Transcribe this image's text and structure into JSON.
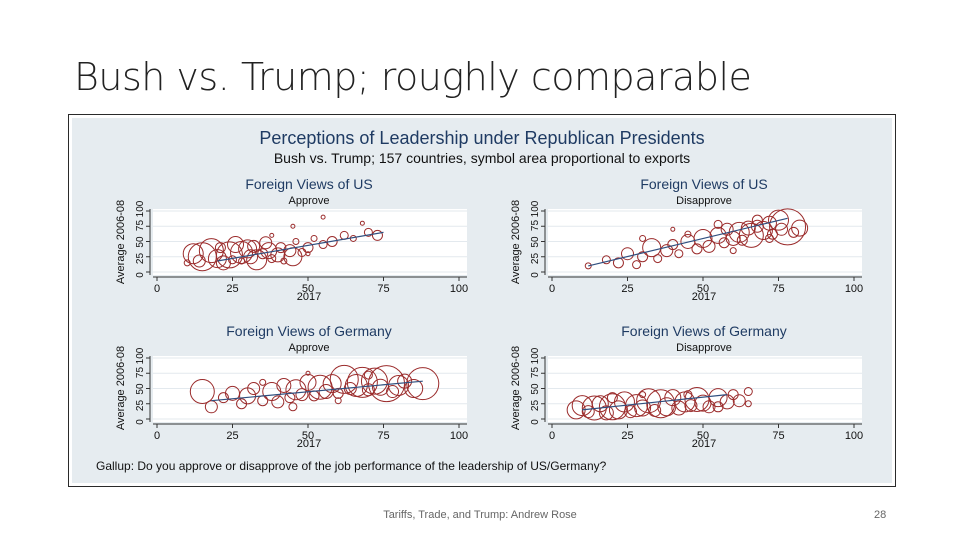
{
  "slide": {
    "title": "Bush vs. Trump; roughly comparable",
    "footer": "Tariffs, Trade, and Trump: Andrew Rose",
    "page_number": "28"
  },
  "colors": {
    "bubble": "#9b2c2c",
    "fit_line": "#2f4f7f",
    "panel_bg": "#e6ecf0",
    "title_text": "#1f3b63"
  },
  "chart_data": {
    "type": "scatter",
    "title": "Perceptions of Leadership under Republican Presidents",
    "subtitle": "Bush vs. Trump; 157 countries, symbol area proportional to exports",
    "note": "Gallup: Do you approve or disapprove of the job performance of the leadership of US/Germany?",
    "panels": [
      {
        "title": "Foreign Views of US",
        "subtitle": "Approve",
        "xlabel": "2017",
        "ylabel": "Average 2006-08",
        "xlim": [
          0,
          100
        ],
        "ylim": [
          0,
          100
        ],
        "xticks": [
          "0",
          "25",
          "50",
          "75",
          "100"
        ],
        "yticks": [
          "0",
          "25",
          "50",
          "75",
          "100"
        ],
        "fit": [
          [
            20,
            18
          ],
          [
            75,
            65
          ]
        ],
        "points": [
          [
            10,
            15,
            3
          ],
          [
            12,
            30,
            10
          ],
          [
            14,
            18,
            6
          ],
          [
            15,
            25,
            14
          ],
          [
            18,
            35,
            12
          ],
          [
            20,
            22,
            9
          ],
          [
            21,
            40,
            5
          ],
          [
            22,
            15,
            7
          ],
          [
            24,
            28,
            13
          ],
          [
            25,
            20,
            4
          ],
          [
            26,
            45,
            8
          ],
          [
            28,
            32,
            11
          ],
          [
            28,
            18,
            3
          ],
          [
            30,
            38,
            9
          ],
          [
            31,
            25,
            7
          ],
          [
            32,
            42,
            6
          ],
          [
            33,
            20,
            10
          ],
          [
            35,
            30,
            5
          ],
          [
            36,
            48,
            6
          ],
          [
            37,
            35,
            8
          ],
          [
            38,
            22,
            4
          ],
          [
            40,
            28,
            7
          ],
          [
            41,
            40,
            5
          ],
          [
            42,
            18,
            3
          ],
          [
            44,
            35,
            6
          ],
          [
            45,
            25,
            9
          ],
          [
            46,
            50,
            3
          ],
          [
            48,
            32,
            4
          ],
          [
            50,
            40,
            5
          ],
          [
            52,
            55,
            3
          ],
          [
            55,
            45,
            4
          ],
          [
            58,
            50,
            5
          ],
          [
            62,
            60,
            4
          ],
          [
            65,
            55,
            3
          ],
          [
            70,
            65,
            4
          ],
          [
            73,
            60,
            5
          ],
          [
            45,
            75,
            2
          ],
          [
            55,
            90,
            2
          ],
          [
            68,
            80,
            2
          ],
          [
            38,
            60,
            2
          ],
          [
            50,
            30,
            2
          ]
        ]
      },
      {
        "title": "Foreign Views of US",
        "subtitle": "Disapprove",
        "xlabel": "2017",
        "ylabel": "Average 2006-08",
        "xlim": [
          0,
          100
        ],
        "ylim": [
          0,
          100
        ],
        "xticks": [
          "0",
          "25",
          "50",
          "75",
          "100"
        ],
        "yticks": [
          "0",
          "25",
          "50",
          "75",
          "100"
        ],
        "fit": [
          [
            12,
            10
          ],
          [
            78,
            88
          ]
        ],
        "points": [
          [
            12,
            10,
            3
          ],
          [
            18,
            20,
            4
          ],
          [
            22,
            15,
            5
          ],
          [
            25,
            30,
            6
          ],
          [
            28,
            12,
            4
          ],
          [
            30,
            25,
            5
          ],
          [
            33,
            40,
            9
          ],
          [
            35,
            22,
            4
          ],
          [
            38,
            35,
            6
          ],
          [
            40,
            45,
            5
          ],
          [
            42,
            30,
            4
          ],
          [
            45,
            50,
            7
          ],
          [
            48,
            38,
            5
          ],
          [
            50,
            55,
            9
          ],
          [
            52,
            42,
            6
          ],
          [
            55,
            60,
            8
          ],
          [
            57,
            48,
            5
          ],
          [
            58,
            70,
            6
          ],
          [
            60,
            55,
            7
          ],
          [
            62,
            65,
            10
          ],
          [
            63,
            52,
            5
          ],
          [
            65,
            72,
            7
          ],
          [
            66,
            60,
            12
          ],
          [
            68,
            75,
            6
          ],
          [
            70,
            68,
            9
          ],
          [
            72,
            80,
            7
          ],
          [
            73,
            62,
            5
          ],
          [
            75,
            85,
            10
          ],
          [
            76,
            70,
            6
          ],
          [
            78,
            74,
            18
          ],
          [
            80,
            65,
            5
          ],
          [
            82,
            72,
            8
          ],
          [
            68,
            85,
            5
          ],
          [
            55,
            78,
            4
          ],
          [
            45,
            62,
            3
          ],
          [
            30,
            55,
            3
          ],
          [
            40,
            70,
            2
          ],
          [
            60,
            35,
            3
          ],
          [
            72,
            55,
            4
          ]
        ]
      },
      {
        "title": "Foreign Views of Germany",
        "subtitle": "Approve",
        "xlabel": "2017",
        "ylabel": "Average 2006-08",
        "xlim": [
          0,
          100
        ],
        "ylim": [
          0,
          100
        ],
        "xticks": [
          "0",
          "25",
          "50",
          "75",
          "100"
        ],
        "yticks": [
          "0",
          "25",
          "50",
          "75",
          "100"
        ],
        "fit": [
          [
            18,
            30
          ],
          [
            88,
            62
          ]
        ],
        "points": [
          [
            15,
            45,
            12
          ],
          [
            18,
            20,
            6
          ],
          [
            22,
            35,
            5
          ],
          [
            25,
            42,
            7
          ],
          [
            28,
            25,
            5
          ],
          [
            30,
            38,
            8
          ],
          [
            32,
            50,
            6
          ],
          [
            35,
            30,
            5
          ],
          [
            38,
            45,
            9
          ],
          [
            40,
            28,
            6
          ],
          [
            42,
            55,
            7
          ],
          [
            44,
            35,
            5
          ],
          [
            46,
            48,
            10
          ],
          [
            48,
            40,
            6
          ],
          [
            50,
            60,
            8
          ],
          [
            52,
            38,
            5
          ],
          [
            54,
            52,
            12
          ],
          [
            56,
            45,
            7
          ],
          [
            58,
            58,
            9
          ],
          [
            60,
            42,
            5
          ],
          [
            62,
            65,
            14
          ],
          [
            64,
            50,
            6
          ],
          [
            66,
            55,
            11
          ],
          [
            68,
            60,
            15
          ],
          [
            70,
            48,
            6
          ],
          [
            72,
            62,
            13
          ],
          [
            74,
            52,
            8
          ],
          [
            76,
            58,
            18
          ],
          [
            78,
            45,
            6
          ],
          [
            80,
            55,
            10
          ],
          [
            82,
            62,
            7
          ],
          [
            85,
            50,
            9
          ],
          [
            88,
            58,
            16
          ],
          [
            45,
            20,
            4
          ],
          [
            60,
            30,
            3
          ],
          [
            70,
            72,
            4
          ],
          [
            35,
            60,
            3
          ],
          [
            50,
            75,
            2
          ]
        ]
      },
      {
        "title": "Foreign Views of Germany",
        "subtitle": "Disapprove",
        "xlabel": "2017",
        "ylabel": "Average 2006-08",
        "xlim": [
          0,
          100
        ],
        "ylim": [
          0,
          100
        ],
        "xticks": [
          "0",
          "25",
          "50",
          "75",
          "100"
        ],
        "yticks": [
          "0",
          "25",
          "50",
          "75",
          "100"
        ],
        "fit": [
          [
            10,
            15
          ],
          [
            58,
            40
          ]
        ],
        "points": [
          [
            8,
            15,
            9
          ],
          [
            10,
            22,
            10
          ],
          [
            12,
            12,
            6
          ],
          [
            14,
            18,
            12
          ],
          [
            16,
            25,
            8
          ],
          [
            18,
            10,
            7
          ],
          [
            20,
            20,
            13
          ],
          [
            22,
            15,
            9
          ],
          [
            24,
            28,
            10
          ],
          [
            26,
            12,
            6
          ],
          [
            28,
            22,
            11
          ],
          [
            30,
            18,
            8
          ],
          [
            32,
            30,
            12
          ],
          [
            34,
            14,
            6
          ],
          [
            36,
            25,
            14
          ],
          [
            38,
            20,
            9
          ],
          [
            40,
            35,
            8
          ],
          [
            42,
            18,
            7
          ],
          [
            44,
            28,
            10
          ],
          [
            46,
            22,
            6
          ],
          [
            48,
            32,
            12
          ],
          [
            50,
            26,
            8
          ],
          [
            52,
            20,
            6
          ],
          [
            55,
            35,
            9
          ],
          [
            58,
            28,
            7
          ],
          [
            60,
            40,
            5
          ],
          [
            62,
            30,
            6
          ],
          [
            65,
            45,
            4
          ],
          [
            20,
            35,
            5
          ],
          [
            45,
            40,
            4
          ],
          [
            55,
            20,
            5
          ],
          [
            30,
            40,
            3
          ],
          [
            65,
            25,
            3
          ]
        ]
      }
    ]
  }
}
